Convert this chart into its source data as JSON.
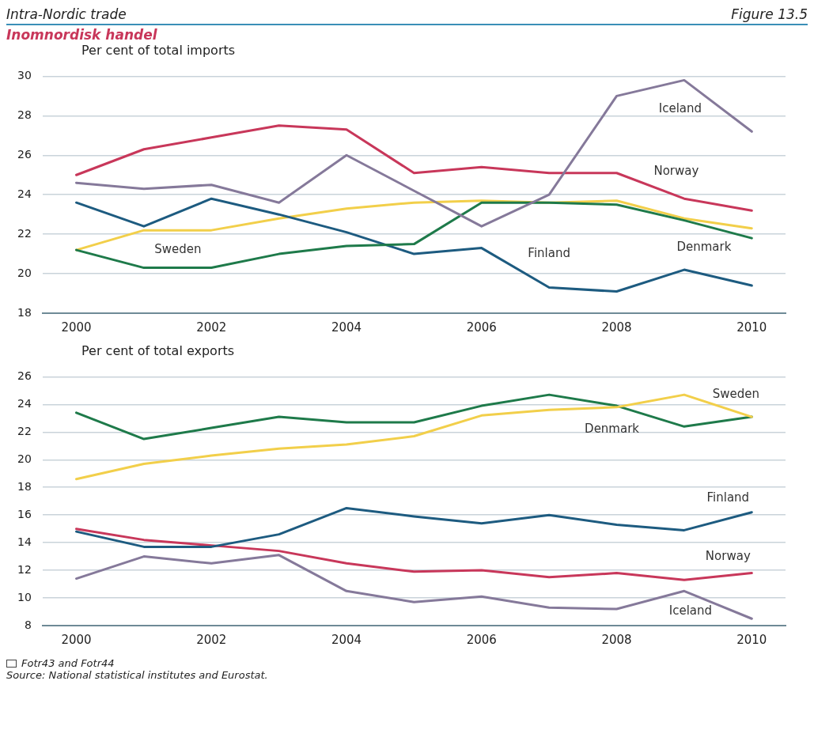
{
  "chart_data": [
    {
      "type": "line",
      "title": "Intra-Nordic trade",
      "subtitle": "Inomnordisk handel",
      "annotations": [
        "Figure 13.5"
      ],
      "ylabel": "Per cent of total imports",
      "x": [
        2000,
        2001,
        2002,
        2003,
        2004,
        2005,
        2006,
        2007,
        2008,
        2009,
        2010
      ],
      "xlim": [
        1999.5,
        2010.5
      ],
      "xticks": [
        2000,
        2002,
        2004,
        2006,
        2008,
        2010
      ],
      "ylim": [
        18,
        30
      ],
      "yticks": [
        18,
        20,
        22,
        24,
        26,
        28,
        30
      ],
      "grid": "y",
      "legend": false,
      "marker": "none",
      "line_style": "solid",
      "series": [
        {
          "name": "Iceland",
          "color": "#85799a",
          "values": [
            24.6,
            24.3,
            24.5,
            23.6,
            26.0,
            24.2,
            22.4,
            24.0,
            29.0,
            29.8,
            27.2
          ]
        },
        {
          "name": "Norway",
          "color": "#c8375a",
          "values": [
            25.0,
            26.3,
            26.9,
            27.5,
            27.3,
            25.1,
            25.4,
            25.1,
            25.1,
            23.8,
            23.2
          ]
        },
        {
          "name": "Denmark",
          "color": "#1e7a4a",
          "values": [
            21.2,
            20.3,
            20.3,
            21.0,
            21.4,
            21.5,
            23.6,
            23.6,
            23.5,
            22.7,
            21.8
          ]
        },
        {
          "name": "Finland",
          "color": "#1d5b80",
          "values": [
            23.6,
            22.4,
            23.8,
            23.0,
            22.1,
            21.0,
            21.3,
            19.3,
            19.1,
            20.2,
            19.4
          ]
        },
        {
          "name": "Sweden",
          "color": "#f2cf4a",
          "values": [
            21.2,
            22.2,
            22.2,
            22.8,
            23.3,
            23.6,
            23.7,
            23.6,
            23.7,
            22.8,
            22.3
          ]
        }
      ]
    },
    {
      "type": "line",
      "ylabel": "Per cent of total exports",
      "annotations": [
        "Fotr43 and Fotr44",
        "Source: National statistical institutes and Eurostat."
      ],
      "x": [
        2000,
        2001,
        2002,
        2003,
        2004,
        2005,
        2006,
        2007,
        2008,
        2009,
        2010
      ],
      "xlim": [
        1999.5,
        2010.5
      ],
      "xticks": [
        2000,
        2002,
        2004,
        2006,
        2008,
        2010
      ],
      "ylim": [
        8,
        26
      ],
      "yticks": [
        8,
        10,
        12,
        14,
        16,
        18,
        20,
        22,
        24,
        26
      ],
      "grid": "y",
      "legend": false,
      "marker": "none",
      "line_style": "solid",
      "series": [
        {
          "name": "Sweden",
          "color": "#f2cf4a",
          "values": [
            18.6,
            19.7,
            20.3,
            20.8,
            21.1,
            21.7,
            23.2,
            23.6,
            23.8,
            24.7,
            23.1
          ]
        },
        {
          "name": "Denmark",
          "color": "#1e7a4a",
          "values": [
            23.4,
            21.5,
            22.3,
            23.1,
            22.7,
            22.7,
            23.9,
            24.7,
            23.9,
            22.4,
            23.1
          ]
        },
        {
          "name": "Finland",
          "color": "#1d5b80",
          "values": [
            14.8,
            13.7,
            13.7,
            14.6,
            16.5,
            15.9,
            15.4,
            16.0,
            15.3,
            14.9,
            16.2
          ]
        },
        {
          "name": "Norway",
          "color": "#c8375a",
          "values": [
            15.0,
            14.2,
            13.8,
            13.4,
            12.5,
            11.9,
            12.0,
            11.5,
            11.8,
            11.3,
            11.8
          ]
        },
        {
          "name": "Iceland",
          "color": "#85799a",
          "values": [
            11.4,
            13.0,
            12.5,
            13.1,
            10.5,
            9.7,
            10.1,
            9.3,
            9.2,
            10.5,
            8.5
          ]
        }
      ]
    }
  ]
}
